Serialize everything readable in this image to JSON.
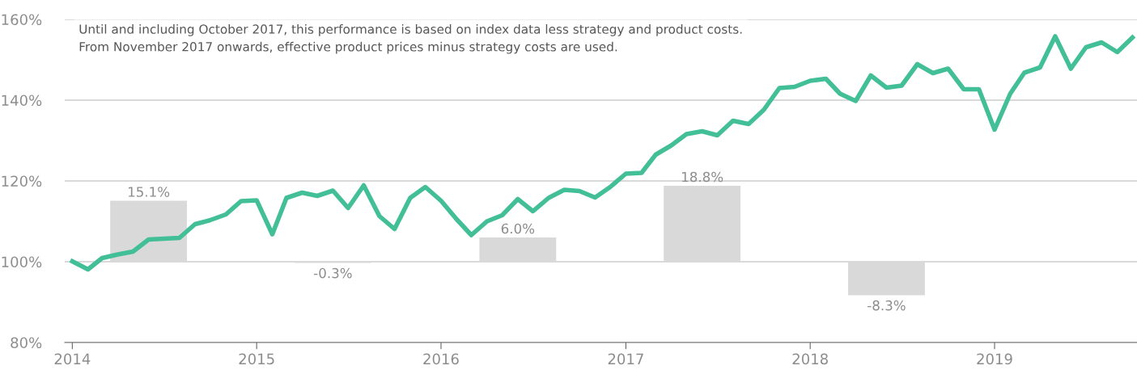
{
  "chart_data": {
    "type": "line",
    "annotations": [
      "Until and including October 2017, this performance is based on index data less strategy and product costs.\nFrom November 2017 onwards, effective product prices minus strategy costs are used."
    ],
    "series": [
      {
        "type": "bar",
        "color": "#d9d9d9",
        "x": [
          "2014-06",
          "2015-06",
          "2016-06",
          "2017-06",
          "2018-06"
        ],
        "base": [
          100,
          100,
          100,
          100,
          100
        ],
        "values": [
          15.1,
          -0.3,
          6.0,
          18.8,
          -8.3
        ],
        "value_labels": [
          "15.1%",
          "-0.3%",
          "6.0%",
          "18.8%",
          "-8.3%"
        ]
      },
      {
        "color": "#43bf97",
        "x": [
          "2014-01",
          "2014-02",
          "2014-03",
          "2014-04",
          "2014-05",
          "2014-06",
          "2014-07",
          "2014-08",
          "2014-09",
          "2014-10",
          "2014-11",
          "2014-12",
          "2015-01",
          "2015-02",
          "2015-03",
          "2015-04",
          "2015-05",
          "2015-06",
          "2015-07",
          "2015-08",
          "2015-09",
          "2015-10",
          "2015-11",
          "2015-12",
          "2016-01",
          "2016-02",
          "2016-03",
          "2016-04",
          "2016-05",
          "2016-06",
          "2016-07",
          "2016-08",
          "2016-09",
          "2016-10",
          "2016-11",
          "2016-12",
          "2017-01",
          "2017-02",
          "2017-03",
          "2017-04",
          "2017-05",
          "2017-06",
          "2017-07",
          "2017-08",
          "2017-09",
          "2017-10",
          "2017-11",
          "2017-12",
          "2018-01",
          "2018-02",
          "2018-03",
          "2018-04",
          "2018-05",
          "2018-06",
          "2018-07",
          "2018-08",
          "2018-09",
          "2018-10",
          "2018-11",
          "2018-12",
          "2019-01",
          "2019-02",
          "2019-03",
          "2019-04",
          "2019-05",
          "2019-06",
          "2019-07",
          "2019-08",
          "2019-09",
          "2019-10"
        ],
        "values": [
          100.1,
          98.1,
          100.9,
          101.8,
          102.5,
          105.5,
          105.7,
          105.9,
          109.3,
          110.3,
          111.7,
          115.0,
          115.2,
          106.8,
          115.8,
          117.1,
          116.3,
          117.6,
          113.3,
          118.9,
          111.3,
          108.1,
          115.8,
          118.5,
          115.1,
          110.5,
          106.6,
          110.0,
          111.5,
          115.5,
          112.5,
          115.8,
          117.8,
          117.5,
          115.9,
          118.5,
          121.8,
          122.0,
          126.5,
          128.8,
          131.6,
          132.3,
          131.3,
          134.9,
          134.1,
          137.6,
          143.0,
          143.3,
          144.8,
          145.3,
          141.6,
          139.8,
          146.1,
          143.1,
          143.6,
          148.9,
          146.7,
          147.8,
          142.7,
          142.7,
          132.7,
          141.6,
          146.8,
          148.1,
          155.8,
          147.8,
          153.1,
          154.3,
          151.9,
          155.5
        ]
      }
    ],
    "xlim": [
      "2013-12-17",
      "2019-10-10"
    ],
    "xticks": [
      {
        "value": "2014-01-01",
        "label": "2014"
      },
      {
        "value": "2015-01-01",
        "label": "2015"
      },
      {
        "value": "2016-01-01",
        "label": "2016"
      },
      {
        "value": "2017-01-01",
        "label": "2017"
      },
      {
        "value": "2018-01-01",
        "label": "2018"
      },
      {
        "value": "2019-01-01",
        "label": "2019"
      }
    ],
    "ylim": [
      80,
      160
    ],
    "yticks": [
      {
        "value": 80,
        "label": "80%"
      },
      {
        "value": 100,
        "label": "100%"
      },
      {
        "value": 120,
        "label": "120%"
      },
      {
        "value": 140,
        "label": "140%"
      },
      {
        "value": 160,
        "label": "160%"
      }
    ],
    "grid": "y",
    "legend": false
  }
}
